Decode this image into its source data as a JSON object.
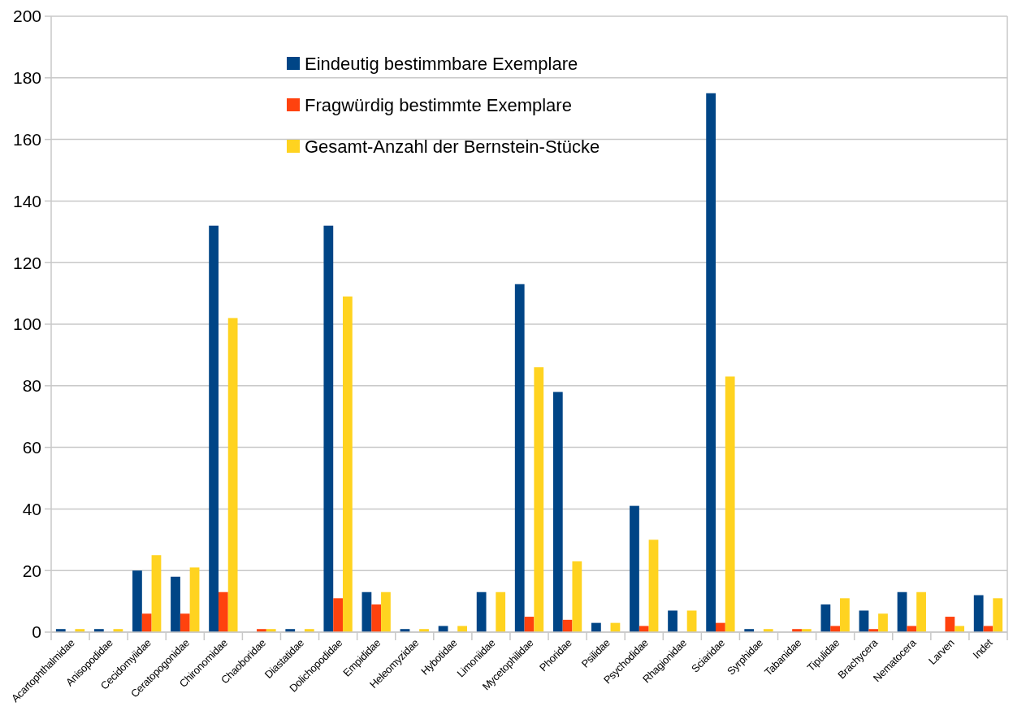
{
  "chart_data": {
    "type": "bar",
    "categories": [
      "Acartophthalmidae",
      "Anisopodidae",
      "Cecidomyiidae",
      "Ceratopogonidae",
      "Chironomidae",
      "Chaoboridae",
      "Diastatidae",
      "Dolichopodidae",
      "Empididae",
      "Heleomyzidae",
      "Hybotidae",
      "Limoniidae",
      "Mycetophilidae",
      "Phoridae",
      "Psilidae",
      "Psychodidae",
      "Rhagionidae",
      "Sciaridae",
      "Syrphidae",
      "Tabanidae",
      "Tipulidae",
      "Brachycera",
      "Nematocera",
      "Larven",
      "Indet"
    ],
    "series": [
      {
        "name": "Eindeutig bestimmbare Exemplare",
        "color": "#004586",
        "values": [
          1,
          1,
          20,
          18,
          132,
          0,
          1,
          132,
          13,
          1,
          2,
          13,
          113,
          78,
          3,
          41,
          7,
          175,
          1,
          0,
          9,
          7,
          13,
          0,
          12
        ]
      },
      {
        "name": "Fragwürdig bestimmte Exemplare",
        "color": "#ff420e",
        "values": [
          0,
          0,
          6,
          6,
          13,
          1,
          0,
          11,
          9,
          0,
          0,
          0,
          5,
          4,
          0,
          2,
          0,
          3,
          0,
          1,
          2,
          1,
          2,
          5,
          2
        ]
      },
      {
        "name": "Gesamt-Anzahl der Bernstein-Stücke",
        "color": "#ffd320",
        "values": [
          1,
          1,
          25,
          21,
          102,
          1,
          1,
          109,
          13,
          1,
          2,
          13,
          86,
          23,
          3,
          30,
          7,
          83,
          1,
          1,
          11,
          6,
          13,
          2,
          11
        ]
      }
    ],
    "ylim": [
      0,
      200
    ],
    "yticks": [
      0,
      20,
      40,
      60,
      80,
      100,
      120,
      140,
      160,
      180,
      200
    ],
    "grid": "y",
    "legend": "top"
  }
}
